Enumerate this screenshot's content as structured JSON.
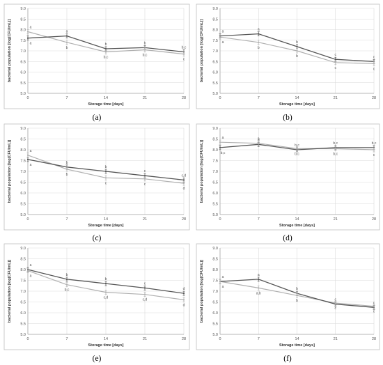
{
  "chart_data": [
    {
      "type": "line",
      "panel_label": "(a)",
      "xlabel": "Storage time [days]",
      "ylabel": "bacterial population [log(CFU/mL)]",
      "x": [
        0,
        7,
        14,
        21,
        28
      ],
      "xlim": [
        0,
        28
      ],
      "ylim": [
        5.0,
        9.0
      ],
      "yticks": [
        "5.0",
        "5.5",
        "6.0",
        "6.5",
        "7.0",
        "7.5",
        "8.0",
        "8.5",
        "9.0"
      ],
      "grid": true,
      "series": [
        {
          "color": "#555555",
          "values": [
            7.6,
            7.7,
            7.1,
            7.15,
            6.95
          ],
          "labels": [
            "",
            "a",
            "b",
            "b",
            "b,c"
          ],
          "label_pos": [
            "",
            "above",
            "above",
            "above",
            "above"
          ]
        },
        {
          "color": "#b0b0b0",
          "values": [
            7.9,
            7.4,
            6.95,
            7.05,
            6.85
          ],
          "labels": [
            "a",
            "b",
            "b,c",
            "b,c",
            "c"
          ],
          "label_pos": [
            "above",
            "below",
            "below",
            "below",
            "below"
          ]
        }
      ],
      "extra_labels": [
        {
          "x": 0,
          "y": 7.6,
          "text": "a",
          "pos": "below"
        }
      ]
    },
    {
      "type": "line",
      "panel_label": "(b)",
      "xlabel": "Storage time [days]",
      "ylabel": "bacterial population [log(CFU/mL)]",
      "x": [
        0,
        7,
        14,
        21,
        28
      ],
      "xlim": [
        0,
        28
      ],
      "ylim": [
        5.0,
        9.0
      ],
      "yticks": [
        "5.0",
        "5.5",
        "6.0",
        "6.5",
        "7.0",
        "7.5",
        "8.0",
        "8.5",
        "9.0"
      ],
      "grid": true,
      "series": [
        {
          "color": "#555555",
          "values": [
            7.7,
            7.8,
            7.2,
            6.6,
            6.5
          ],
          "labels": [
            "a",
            "a",
            "b",
            "c",
            "c"
          ],
          "label_pos": [
            "above",
            "above",
            "above",
            "above",
            "above"
          ]
        },
        {
          "color": "#b0b0b0",
          "values": [
            7.65,
            7.4,
            7.0,
            6.45,
            6.4
          ],
          "labels": [
            "a",
            "b",
            "b",
            "c",
            "c"
          ],
          "label_pos": [
            "below",
            "below",
            "below",
            "below",
            "below"
          ]
        }
      ],
      "extra_labels": []
    },
    {
      "type": "line",
      "panel_label": "(c)",
      "xlabel": "Storage time [days]",
      "ylabel": "bacterial population [log(CFU/mL)]",
      "x": [
        0,
        7,
        14,
        21,
        28
      ],
      "xlim": [
        0,
        28
      ],
      "ylim": [
        5.0,
        9.0
      ],
      "yticks": [
        "5.0",
        "5.5",
        "6.0",
        "6.5",
        "7.0",
        "7.5",
        "8.0",
        "8.5",
        "9.0"
      ],
      "grid": true,
      "series": [
        {
          "color": "#555555",
          "values": [
            7.55,
            7.2,
            7.0,
            6.8,
            6.6
          ],
          "labels": [
            "a",
            "b",
            "b",
            "c",
            "c,d"
          ],
          "label_pos": [
            "below",
            "above",
            "above",
            "above",
            "above"
          ]
        },
        {
          "color": "#b0b0b0",
          "values": [
            7.75,
            7.1,
            6.7,
            6.65,
            6.45
          ],
          "labels": [
            "a",
            "b",
            "c",
            "c",
            "d"
          ],
          "label_pos": [
            "above",
            "below",
            "below",
            "below",
            "below"
          ]
        }
      ],
      "extra_labels": []
    },
    {
      "type": "line",
      "panel_label": "(d)",
      "xlabel": "Storage time [days]",
      "ylabel": "bacterial population [log(CFU/mL)]",
      "x": [
        0,
        7,
        14,
        21,
        28
      ],
      "xlim": [
        0,
        28
      ],
      "ylim": [
        5.0,
        9.0
      ],
      "yticks": [
        "5.0",
        "5.5",
        "6.0",
        "6.5",
        "7.0",
        "7.5",
        "8.0",
        "8.5",
        "9.0"
      ],
      "grid": true,
      "series": [
        {
          "color": "#555555",
          "values": [
            8.1,
            8.25,
            8.0,
            8.1,
            8.1
          ],
          "labels": [
            "b,c",
            "a",
            "b,c",
            "b,c",
            "b,c"
          ],
          "label_pos": [
            "below",
            "above",
            "above",
            "above",
            "above"
          ]
        },
        {
          "color": "#b0b0b0",
          "values": [
            8.35,
            8.3,
            8.05,
            8.05,
            8.0
          ],
          "labels": [
            "a",
            "a",
            "b,c",
            "b,c",
            "c"
          ],
          "label_pos": [
            "above",
            "above",
            "below",
            "below",
            "below"
          ]
        }
      ],
      "extra_labels": []
    },
    {
      "type": "line",
      "panel_label": "(e)",
      "xlabel": "Storage time [days]",
      "ylabel": "bacterial population [log(CFU/mL)]",
      "x": [
        0,
        7,
        14,
        21,
        28
      ],
      "xlim": [
        0,
        28
      ],
      "ylim": [
        5.0,
        9.0
      ],
      "yticks": [
        "5.0",
        "5.5",
        "6.0",
        "6.5",
        "7.0",
        "7.5",
        "8.0",
        "8.5",
        "9.0"
      ],
      "grid": true,
      "series": [
        {
          "color": "#555555",
          "values": [
            8.0,
            7.55,
            7.35,
            7.15,
            6.9
          ],
          "labels": [
            "a",
            "b",
            "b",
            "c",
            "d"
          ],
          "label_pos": [
            "above",
            "above",
            "above",
            "above",
            "above"
          ]
        },
        {
          "color": "#b0b0b0",
          "values": [
            7.95,
            7.3,
            6.95,
            6.85,
            6.6
          ],
          "labels": [
            "a",
            "b,c",
            "c,d",
            "c,d",
            "d"
          ],
          "label_pos": [
            "below",
            "below",
            "below",
            "below",
            "below"
          ]
        }
      ],
      "extra_labels": []
    },
    {
      "type": "line",
      "panel_label": "(f)",
      "xlabel": "Storage time [days]",
      "ylabel": "bacterial population [log(CFU/mL)]",
      "x": [
        0,
        7,
        14,
        21,
        28
      ],
      "xlim": [
        0,
        28
      ],
      "ylim": [
        5.0,
        9.0
      ],
      "yticks": [
        "5.0",
        "5.5",
        "6.0",
        "6.5",
        "7.0",
        "7.5",
        "8.0",
        "8.5",
        "9.0"
      ],
      "grid": true,
      "series": [
        {
          "color": "#555555",
          "values": [
            7.45,
            7.55,
            6.9,
            6.4,
            6.25
          ],
          "labels": [
            "a",
            "a",
            "b",
            "c",
            "c"
          ],
          "label_pos": [
            "above",
            "above",
            "above",
            "above",
            "above"
          ]
        },
        {
          "color": "#b0b0b0",
          "values": [
            7.45,
            7.15,
            6.8,
            6.45,
            6.3
          ],
          "labels": [
            "a",
            "a,b",
            "b",
            "c",
            "c"
          ],
          "label_pos": [
            "below",
            "below",
            "below",
            "below",
            "below"
          ]
        }
      ],
      "extra_labels": []
    }
  ]
}
